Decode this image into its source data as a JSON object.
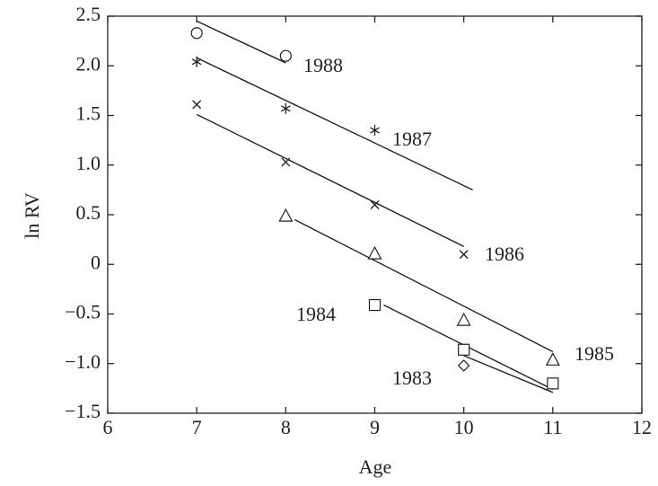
{
  "chart_data": {
    "type": "scatter",
    "x_label": "Age",
    "y_label": "ln RV",
    "xlim": [
      6,
      12
    ],
    "xticks": [
      6,
      7,
      8,
      9,
      10,
      11,
      12
    ],
    "ylim": [
      -1.5,
      2.5
    ],
    "yticks": [
      {
        "value": -1.5,
        "label": "−1.5"
      },
      {
        "value": -1,
        "label": "−1.0"
      },
      {
        "value": -0.5,
        "label": "−0.5"
      },
      0,
      0.5,
      {
        "value": 1,
        "label": "1.0"
      },
      1.5,
      {
        "value": 2,
        "label": "2.0"
      },
      2.5
    ],
    "color": "#222222",
    "series": [
      {
        "name": "1988",
        "marker": "circle",
        "x": [
          7,
          8
        ],
        "values": [
          2.33,
          2.1
        ],
        "fit_x": [
          7,
          8
        ],
        "fit_y": [
          2.45,
          2.03
        ]
      },
      {
        "name": "1987",
        "marker": "asterisk",
        "x": [
          7,
          8,
          9
        ],
        "values": [
          2.04,
          1.57,
          1.35
        ],
        "fit_x": [
          7,
          10.1
        ],
        "fit_y": [
          2.08,
          0.75
        ]
      },
      {
        "name": "1986",
        "marker": "cross",
        "x": [
          7,
          8,
          9,
          10
        ],
        "values": [
          1.61,
          1.03,
          0.6,
          0.1
        ],
        "fit_x": [
          7,
          10
        ],
        "fit_y": [
          1.51,
          0.18
        ]
      },
      {
        "name": "1985",
        "marker": "triangle",
        "x": [
          8,
          9,
          10,
          11
        ],
        "values": [
          0.49,
          0.11,
          -0.56,
          -0.96
        ],
        "fit_x": [
          8.1,
          11
        ],
        "fit_y": [
          0.45,
          -0.88
        ]
      },
      {
        "name": "1984",
        "marker": "square",
        "x": [
          9,
          10,
          11
        ],
        "values": [
          -0.41,
          -0.86,
          -1.2
        ],
        "fit_x": [
          9.1,
          11
        ],
        "fit_y": [
          -0.41,
          -1.26
        ]
      },
      {
        "name": "1983",
        "marker": "diamond",
        "x": [
          10
        ],
        "values": [
          -1.02
        ],
        "fit_x": [
          10,
          11
        ],
        "fit_y": [
          -0.92,
          -1.29
        ]
      }
    ]
  }
}
